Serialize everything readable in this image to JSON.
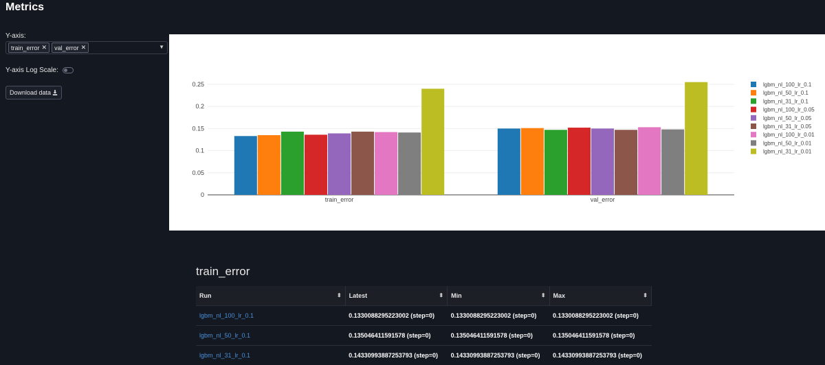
{
  "page": {
    "title": "Metrics"
  },
  "controls": {
    "yaxis_label": "Y-axis:",
    "selected_metrics": [
      "train_error",
      "val_error"
    ],
    "log_scale_label": "Y-axis Log Scale:",
    "log_scale_on": false,
    "download_label": "Download data"
  },
  "chart_data": {
    "type": "bar",
    "categories": [
      "train_error",
      "val_error"
    ],
    "ylim": [
      0,
      0.27
    ],
    "yticks": [
      "0",
      "0.05",
      "0.1",
      "0.15",
      "0.2",
      "0.25"
    ],
    "series": [
      {
        "name": "lgbm_nl_100_lr_0.1",
        "color": "#1f77b4",
        "values": [
          0.133,
          0.15
        ]
      },
      {
        "name": "lgbm_nl_50_lr_0.1",
        "color": "#ff7f0e",
        "values": [
          0.135,
          0.151
        ]
      },
      {
        "name": "lgbm_nl_31_lr_0.1",
        "color": "#2ca02c",
        "values": [
          0.143,
          0.147
        ]
      },
      {
        "name": "lgbm_nl_100_lr_0.05",
        "color": "#d62728",
        "values": [
          0.136,
          0.152
        ]
      },
      {
        "name": "lgbm_nl_50_lr_0.05",
        "color": "#9467bd",
        "values": [
          0.139,
          0.15
        ]
      },
      {
        "name": "lgbm_nl_31_lr_0.05",
        "color": "#8c564b",
        "values": [
          0.143,
          0.147
        ]
      },
      {
        "name": "lgbm_nl_100_lr_0.01",
        "color": "#e377c2",
        "values": [
          0.142,
          0.153
        ]
      },
      {
        "name": "lgbm_nl_50_lr_0.01",
        "color": "#7f7f7f",
        "values": [
          0.141,
          0.148
        ]
      },
      {
        "name": "lgbm_nl_31_lr_0.01",
        "color": "#bcbd22",
        "values": [
          0.24,
          0.255
        ]
      }
    ],
    "legend_position": "right"
  },
  "table": {
    "title": "train_error",
    "columns": [
      "Run",
      "Latest",
      "Min",
      "Max"
    ],
    "rows": [
      {
        "run": "lgbm_nl_100_lr_0.1",
        "latest": "0.1330088295223002 (step=0)",
        "min": "0.1330088295223002 (step=0)",
        "max": "0.1330088295223002 (step=0)"
      },
      {
        "run": "lgbm_nl_50_lr_0.1",
        "latest": "0.135046411591578 (step=0)",
        "min": "0.135046411591578 (step=0)",
        "max": "0.135046411591578 (step=0)"
      },
      {
        "run": "lgbm_nl_31_lr_0.1",
        "latest": "0.14330993887253793 (step=0)",
        "min": "0.14330993887253793 (step=0)",
        "max": "0.14330993887253793 (step=0)"
      }
    ]
  }
}
